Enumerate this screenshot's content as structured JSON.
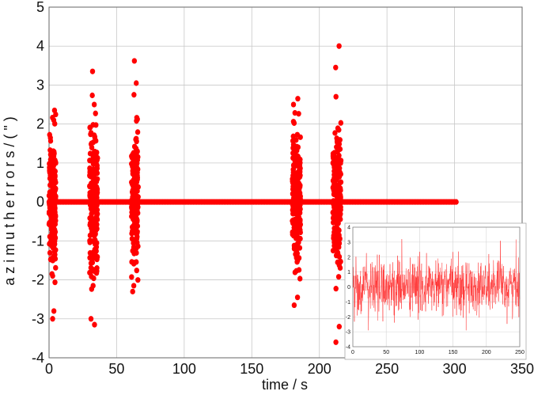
{
  "chart_data": [
    {
      "type": "scatter",
      "title": "",
      "xlabel": "time / s",
      "ylabel": "a z i m u t h  e r r o r s / ( \" )",
      "xlim": [
        0,
        350
      ],
      "ylim": [
        -4,
        5
      ],
      "xticks": [
        "0",
        "50",
        "100",
        "150",
        "200",
        "250",
        "300",
        "350"
      ],
      "yticks": [
        "-4",
        "-3",
        "-2",
        "-1",
        "0",
        "1",
        "2",
        "3",
        "4",
        "5"
      ],
      "grid": true,
      "marker_color": "#ff0000",
      "series": [
        {
          "baseline": {
            "x_range": [
              0,
              302
            ],
            "y": 0
          },
          "bursts": [
            {
              "x_range": [
                0,
                5
              ],
              "y_min": -3.0,
              "y_max": 2.35,
              "y_highlights": [
                2.35,
                2.1,
                -1.9,
                -2.8,
                -3.0
              ]
            },
            {
              "x_range": [
                30,
                36
              ],
              "y_min": -3.15,
              "y_max": 3.35,
              "y_highlights": [
                3.35,
                2.5,
                -2.15,
                -3.0,
                -3.15
              ]
            },
            {
              "x_range": [
                61,
                66
              ],
              "y_min": -2.3,
              "y_max": 3.62,
              "y_highlights": [
                3.62,
                3.05,
                2.75,
                -2.15,
                -2.3
              ]
            },
            {
              "x_range": [
                180,
                186
              ],
              "y_min": -2.65,
              "y_max": 2.65,
              "y_highlights": [
                2.65,
                2.5,
                -2.45,
                -2.65
              ]
            },
            {
              "x_range": [
                210,
                216
              ],
              "y_min": -3.6,
              "y_max": 4.0,
              "y_highlights": [
                4.0,
                3.45,
                2.7,
                -3.2,
                -3.6
              ]
            }
          ]
        }
      ]
    },
    {
      "type": "line",
      "inset": true,
      "xlim": [
        0,
        250
      ],
      "ylim": [
        -4,
        4
      ],
      "xticks": [
        "0",
        "50",
        "100",
        "150",
        "200",
        "250"
      ],
      "yticks": [
        "-4",
        "-3",
        "-2",
        "-1",
        "0",
        "1",
        "2",
        "3",
        "4"
      ],
      "grid": true,
      "line_color": "#ff3333",
      "series": [
        {
          "description_range": [
            -2.9,
            3.2
          ],
          "points": 250
        }
      ]
    }
  ]
}
